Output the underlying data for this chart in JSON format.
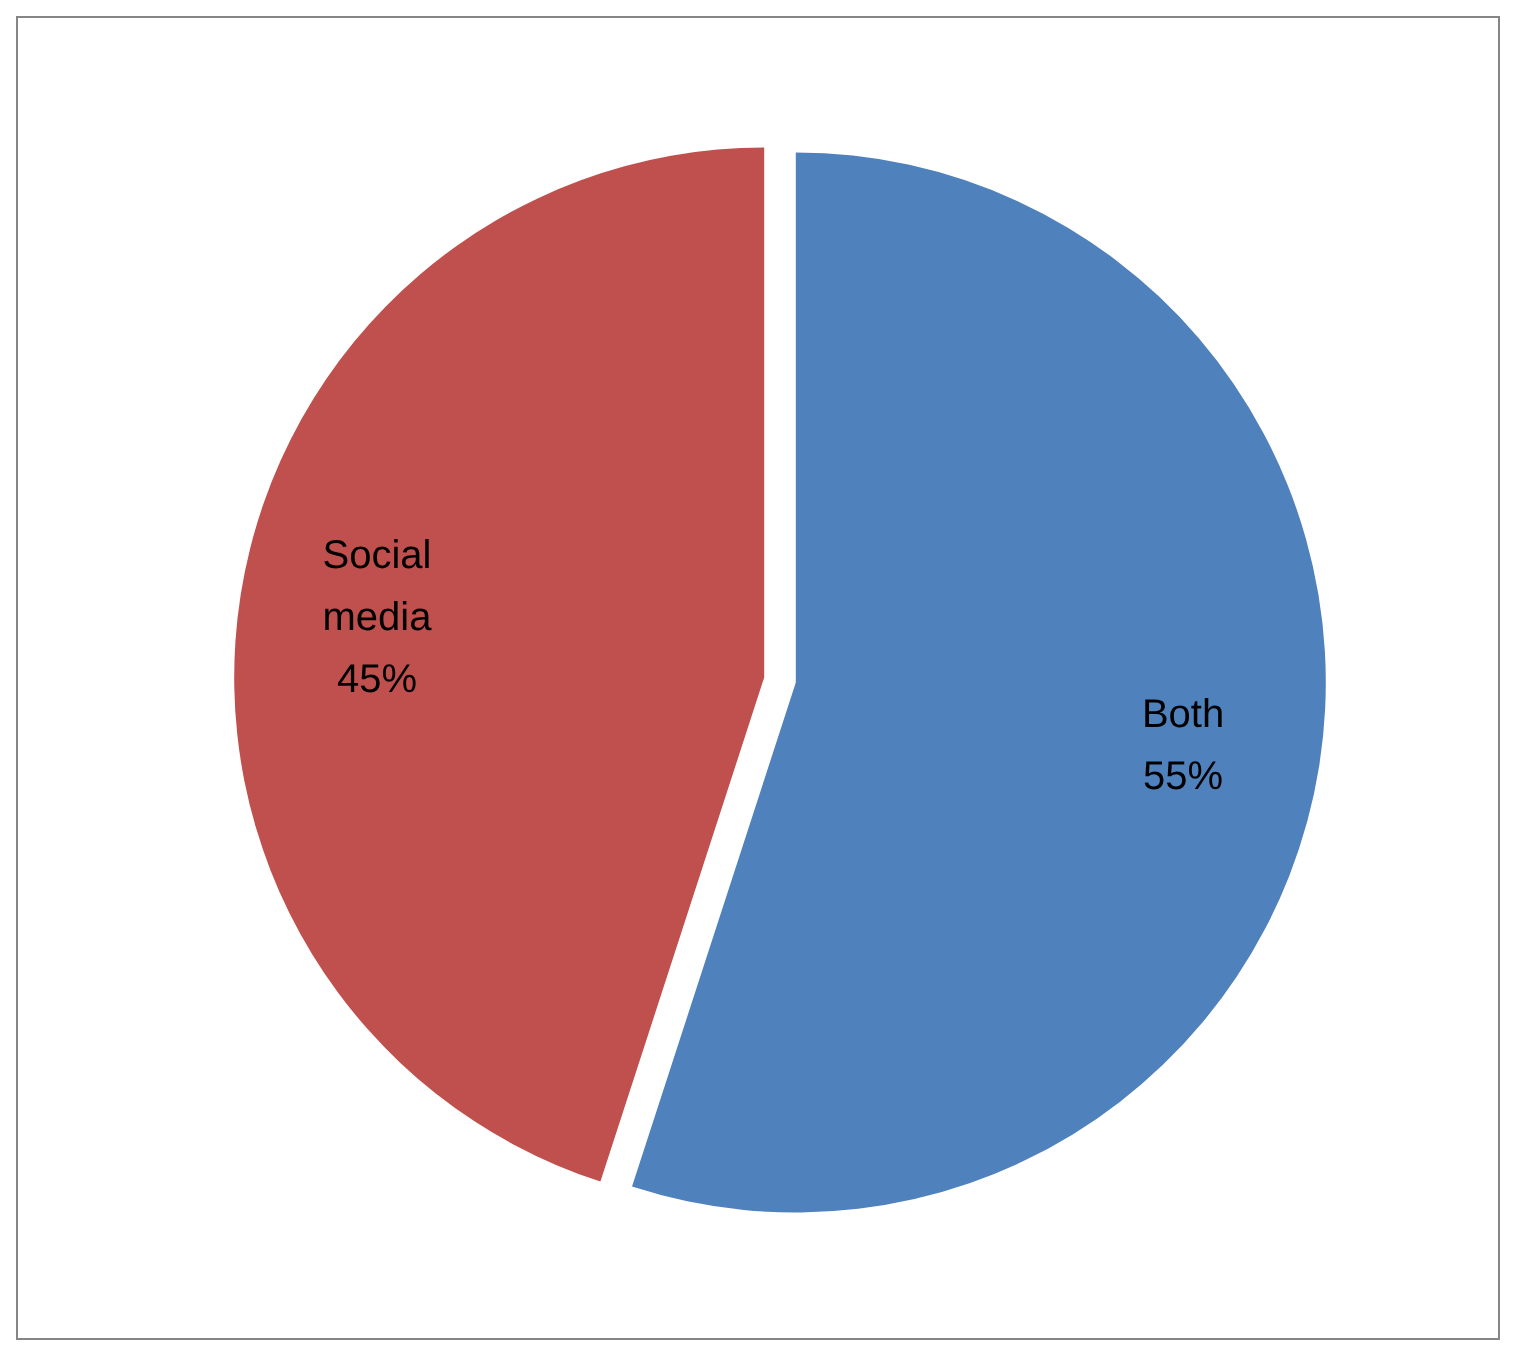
{
  "chart_data": {
    "type": "pie",
    "categories": [
      "Both",
      "Social media"
    ],
    "values": [
      55,
      45
    ],
    "colors": [
      "#4f81bd",
      "#c0504d"
    ],
    "value_labels": [
      "55%",
      "45%"
    ]
  }
}
